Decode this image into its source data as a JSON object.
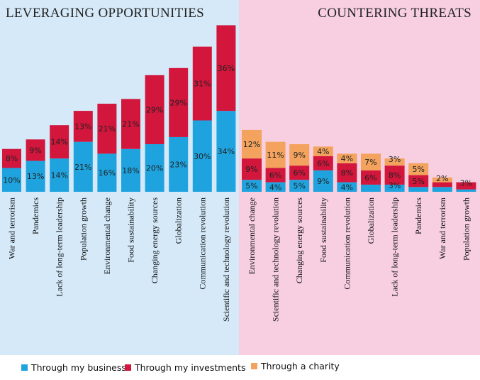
{
  "colors": {
    "left_bg": "#d5e9f8",
    "right_bg": "#f7cfe0",
    "business": "#1fa3df",
    "investments": "#d2163c",
    "charity": "#f3a35e"
  },
  "sections": {
    "left_title": "LEVERAGING OPPORTUNITIES",
    "right_title": "COUNTERING THREATS"
  },
  "chart_data": [
    {
      "type": "bar",
      "stacked": true,
      "title": "LEVERAGING OPPORTUNITIES",
      "categories": [
        "War and terrorism",
        "Pandemics",
        "Lack of long-term leadership",
        "Population growth",
        "Environmental change",
        "Food sustainability",
        "Changing energy sources",
        "Globalization",
        "Communication revolution",
        "Scientific and technology revolution"
      ],
      "series": [
        {
          "name": "Through my business",
          "values": [
            10,
            13,
            14,
            21,
            16,
            18,
            20,
            23,
            30,
            34
          ]
        },
        {
          "name": "Through my investments",
          "values": [
            8,
            9,
            14,
            13,
            21,
            21,
            29,
            29,
            31,
            36
          ]
        }
      ],
      "labels": [
        [
          "10%",
          "13%",
          "14%",
          "21%",
          "16%",
          "18%",
          "20%",
          "23%",
          "30%",
          "34%"
        ],
        [
          "8%",
          "9%",
          "14%",
          "13%",
          "21%",
          "21%",
          "29%",
          "29%",
          "31%",
          "36%"
        ]
      ]
    },
    {
      "type": "bar",
      "stacked": true,
      "title": "COUNTERING THREATS",
      "categories": [
        "Environmental change",
        "Scientific and technology revolution",
        "Changing energy sources",
        "Food sustainability",
        "Communication revolution",
        "Globalization",
        "Lack of long-term leadership",
        "Pandemics",
        "War and terrorism",
        "Population growth"
      ],
      "series": [
        {
          "name": "Through my business",
          "values": [
            5,
            4,
            5,
            9,
            4,
            3,
            3,
            2,
            2,
            1
          ]
        },
        {
          "name": "Through my investments",
          "values": [
            9,
            6,
            6,
            6,
            8,
            6,
            8,
            5,
            2,
            3
          ]
        },
        {
          "name": "Through a charity",
          "values": [
            12,
            11,
            9,
            4,
            4,
            7,
            3,
            5,
            2,
            0
          ]
        }
      ],
      "labels": [
        [
          "5%",
          "4%",
          "5%",
          "9%",
          "4%",
          "",
          "3%",
          "",
          "",
          ""
        ],
        [
          "9%",
          "6%",
          "6%",
          "6%",
          "8%",
          "6%",
          "8%",
          "5%",
          "",
          "3%"
        ],
        [
          "12%",
          "11%",
          "9%",
          "4%",
          "4%",
          "7%",
          "3%",
          "5%",
          "2%",
          ""
        ]
      ]
    }
  ],
  "legend": [
    {
      "label": "Through my business",
      "color": "#1fa3df"
    },
    {
      "label": "Through my investments",
      "color": "#d2163c"
    },
    {
      "label": "Through a charity",
      "color": "#f3a35e"
    }
  ]
}
